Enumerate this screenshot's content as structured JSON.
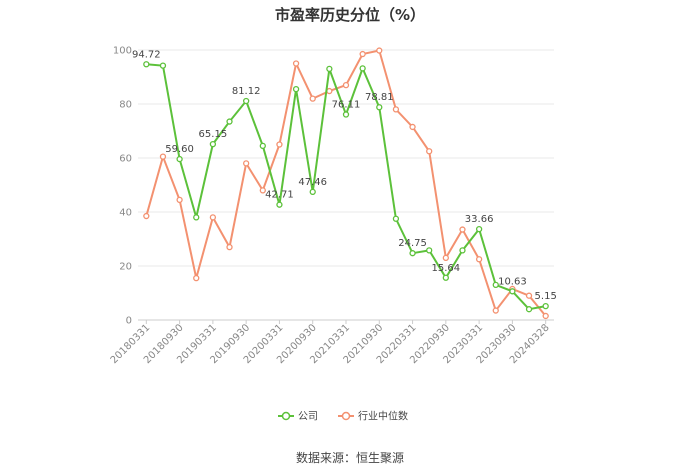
{
  "source_text": "数据来源：恒生聚源",
  "colors": {
    "company": "#5cc13a",
    "industry": "#f39170",
    "grid": "#e8e8e8",
    "axis": "#cccccc"
  },
  "chart_data": {
    "type": "line",
    "title": "市盈率历史分位（%）",
    "xlabel": "",
    "ylabel": "",
    "ylim": [
      0,
      100
    ],
    "y_ticks": [
      0,
      20,
      40,
      60,
      80,
      100
    ],
    "grid": true,
    "legend_position": "bottom-center",
    "x": [
      "20180331",
      "20180630",
      "20180930",
      "20181231",
      "20190331",
      "20190630",
      "20190930",
      "20191231",
      "20200331",
      "20200630",
      "20200930",
      "20201231",
      "20210331",
      "20210630",
      "20210930",
      "20211231",
      "20220331",
      "20220630",
      "20220930",
      "20221231",
      "20230331",
      "20230630",
      "20230930",
      "20231231",
      "20240331"
    ],
    "x_tick_labels": [
      "20180331",
      "20180930",
      "20190331",
      "20190930",
      "20200331",
      "20200930",
      "20210331",
      "20210930",
      "20220331",
      "20220930",
      "20230331",
      "20230930",
      "20240328"
    ],
    "series": [
      {
        "name": "公司",
        "values": [
          94.72,
          94.2,
          59.6,
          38.0,
          65.15,
          73.5,
          81.12,
          64.5,
          42.71,
          85.5,
          47.46,
          93.0,
          76.11,
          93.2,
          78.81,
          37.5,
          24.75,
          25.8,
          15.64,
          25.8,
          33.66,
          13.0,
          10.63,
          4.0,
          5.15
        ]
      },
      {
        "name": "行业中位数",
        "values": [
          38.5,
          60.5,
          44.5,
          15.5,
          38.0,
          27.0,
          58.0,
          48.0,
          65.0,
          95.0,
          82.0,
          84.8,
          87.0,
          98.5,
          99.8,
          78.0,
          71.5,
          62.5,
          23.0,
          33.5,
          22.5,
          3.5,
          11.5,
          9.0,
          1.5
        ]
      }
    ],
    "data_labels": [
      {
        "index": 0,
        "text": "94.72"
      },
      {
        "index": 2,
        "text": "59.60"
      },
      {
        "index": 4,
        "text": "65.15"
      },
      {
        "index": 6,
        "text": "81.12"
      },
      {
        "index": 8,
        "text": "42.71"
      },
      {
        "index": 10,
        "text": "47.46"
      },
      {
        "index": 12,
        "text": "76.11"
      },
      {
        "index": 14,
        "text": "78.81"
      },
      {
        "index": 16,
        "text": "24.75"
      },
      {
        "index": 18,
        "text": "15.64"
      },
      {
        "index": 20,
        "text": "33.66"
      },
      {
        "index": 22,
        "text": "10.63"
      },
      {
        "index": 24,
        "text": "5.15"
      }
    ]
  }
}
